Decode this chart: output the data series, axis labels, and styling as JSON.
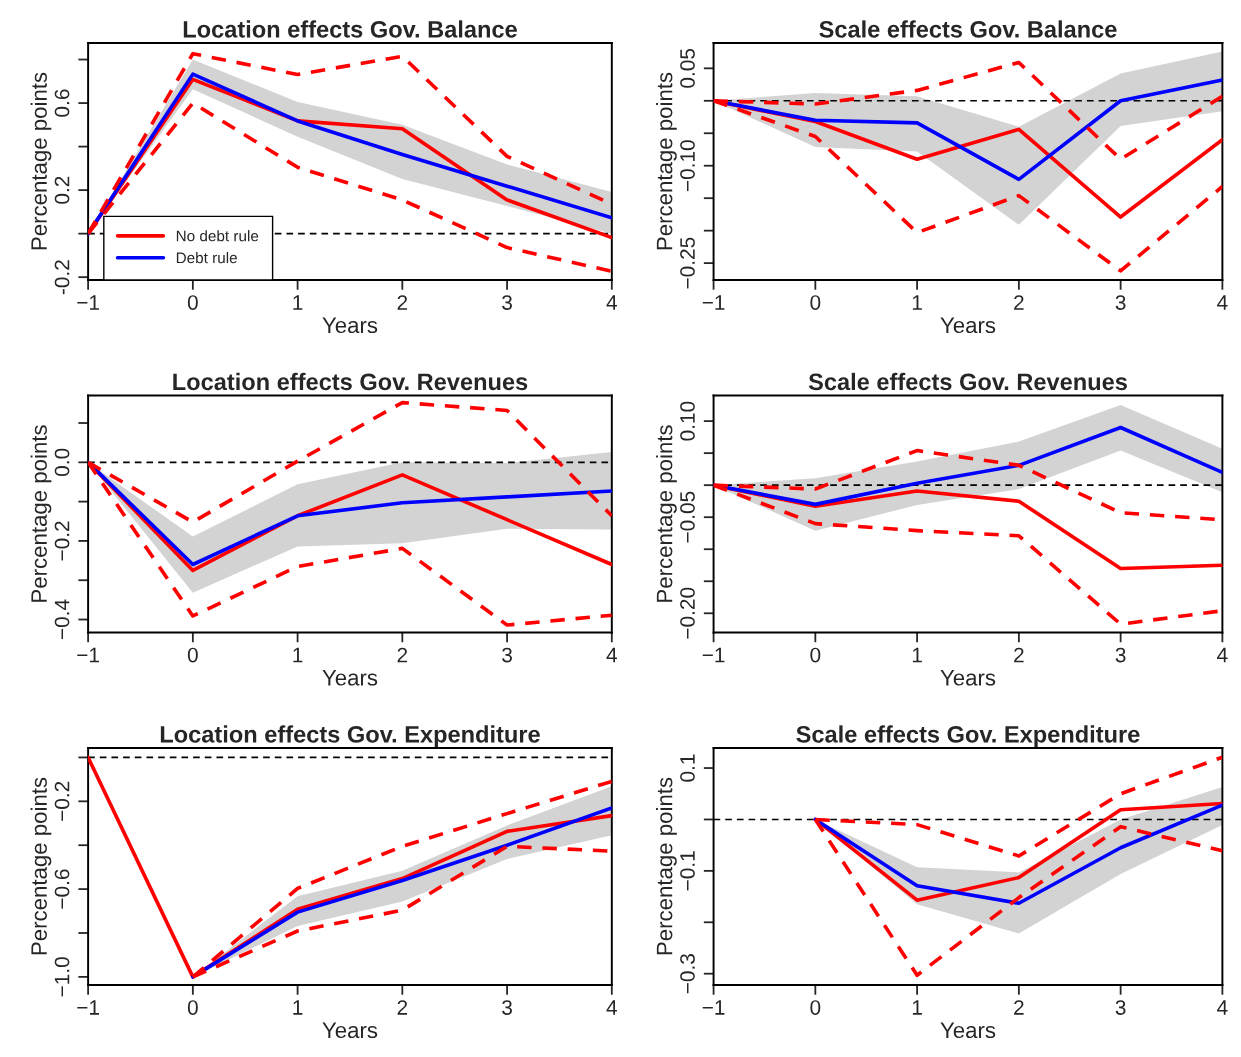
{
  "chart_data": [
    {
      "type": "line",
      "title": "Location effects Gov. Balance",
      "xlabel": "Years",
      "ylabel": "Percentage points",
      "x": [
        -1,
        0,
        1,
        2,
        3,
        4
      ],
      "xlim": [
        -1,
        4
      ],
      "xticks": [
        -1,
        0,
        1,
        2,
        3,
        4
      ],
      "ylim": [
        -0.213,
        0.876
      ],
      "yticks": [
        -0.2,
        {
          "value": 0.0,
          "label": null
        },
        0.2,
        {
          "value": 0.4,
          "label": null
        },
        0.6,
        {
          "value": 0.8,
          "label": null
        }
      ],
      "legend": "bottom left",
      "ref_lines": [
        {
          "axis": "y",
          "value": 0,
          "color": "#000000",
          "line_style": "dashed"
        }
      ],
      "series": [
        {
          "name": "No debt rule",
          "color": "#ff0000",
          "line_style": "solid",
          "values": [
            0,
            0.709,
            0.518,
            0.482,
            0.155,
            -0.018
          ]
        },
        {
          "name": "Debt rule",
          "color": "#0000ff",
          "line_style": "solid",
          "values": [
            0,
            0.733,
            0.518,
            0.364,
            0.218,
            0.073
          ],
          "lower": [
            0,
            0.664,
            0.445,
            0.251,
            0.127,
            0.0
          ],
          "upper": [
            0,
            0.8,
            0.605,
            0.5,
            0.318,
            0.191
          ]
        },
        {
          "color": "#ff0000",
          "line_style": "dashed",
          "values": [
            0,
            0.827,
            0.731,
            0.815,
            0.355,
            0.136
          ]
        },
        {
          "color": "#ff0000",
          "line_style": "dashed",
          "values": [
            0,
            0.6,
            0.305,
            0.155,
            -0.064,
            -0.173
          ]
        }
      ]
    },
    {
      "type": "line",
      "title": "Scale effects Gov. Balance",
      "xlabel": "Years",
      "ylabel": "Percentage points",
      "x": [
        -1,
        0,
        1,
        2,
        3,
        4
      ],
      "xlim": [
        -1,
        4
      ],
      "xticks": [
        -1,
        0,
        1,
        2,
        3,
        4
      ],
      "ylim": [
        -0.276,
        0.089
      ],
      "yticks": [
        {
          "value": -0.25,
          "label": "−0.25"
        },
        {
          "value": -0.2,
          "label": null
        },
        {
          "value": -0.15,
          "label": null
        },
        {
          "value": -0.1,
          "label": "−0.10"
        },
        {
          "value": -0.05,
          "label": null
        },
        {
          "value": 0.0,
          "label": null
        },
        {
          "value": 0.05,
          "label": "0.05"
        }
      ],
      "ref_lines": [
        {
          "axis": "y",
          "value": 0,
          "color": "#000000",
          "line_style": "dashed"
        }
      ],
      "series": [
        {
          "color": "#ff0000",
          "line_style": "solid",
          "values": [
            0,
            -0.032,
            -0.09,
            -0.044,
            -0.179,
            -0.06
          ]
        },
        {
          "color": "#0000ff",
          "line_style": "solid",
          "values": [
            0,
            -0.03,
            -0.034,
            -0.121,
            0.0,
            0.032
          ],
          "lower": [
            0,
            -0.071,
            -0.078,
            -0.191,
            -0.039,
            -0.016
          ],
          "upper": [
            0,
            0.012,
            0.007,
            -0.04,
            0.042,
            0.076
          ]
        },
        {
          "color": "#ff0000",
          "line_style": "dashed",
          "values": [
            0,
            -0.005,
            0.016,
            0.059,
            -0.09,
            0.007
          ]
        },
        {
          "color": "#ff0000",
          "line_style": "dashed",
          "values": [
            0,
            -0.055,
            -0.203,
            -0.146,
            -0.262,
            -0.132
          ]
        }
      ]
    },
    {
      "type": "line",
      "title": "Location effects Gov. Revenues",
      "xlabel": "Years",
      "ylabel": "Percentage points",
      "x": [
        -1,
        0,
        1,
        2,
        3,
        4
      ],
      "xlim": [
        -1,
        4
      ],
      "xticks": [
        -1,
        0,
        1,
        2,
        3,
        4
      ],
      "ylim": [
        -0.433,
        0.17
      ],
      "yticks": [
        {
          "value": -0.4,
          "label": "−0.4"
        },
        {
          "value": -0.3,
          "label": null
        },
        {
          "value": -0.2,
          "label": "−0.2"
        },
        {
          "value": -0.1,
          "label": null
        },
        {
          "value": 0.0,
          "label": "0.0"
        },
        {
          "value": 0.1,
          "label": null
        }
      ],
      "ref_lines": [
        {
          "axis": "y",
          "value": 0,
          "color": "#000000",
          "line_style": "dashed"
        }
      ],
      "series": [
        {
          "color": "#ff0000",
          "line_style": "solid",
          "values": [
            0,
            -0.275,
            -0.136,
            -0.032,
            -0.146,
            -0.26
          ]
        },
        {
          "color": "#0000ff",
          "line_style": "solid",
          "values": [
            0,
            -0.26,
            -0.136,
            -0.103,
            -0.088,
            -0.073
          ],
          "lower": [
            0,
            -0.332,
            -0.214,
            -0.206,
            -0.169,
            -0.171
          ],
          "upper": [
            0,
            -0.189,
            -0.056,
            0.0,
            -0.002,
            0.026
          ]
        },
        {
          "color": "#ff0000",
          "line_style": "dashed",
          "values": [
            0,
            -0.152,
            0.003,
            0.152,
            0.132,
            -0.136
          ]
        },
        {
          "color": "#ff0000",
          "line_style": "dashed",
          "values": [
            0,
            -0.391,
            -0.265,
            -0.219,
            -0.414,
            -0.389
          ]
        }
      ]
    },
    {
      "type": "line",
      "title": "Scale effects Gov. Revenues",
      "xlabel": "Years",
      "ylabel": "Percentage points",
      "x": [
        -1,
        0,
        1,
        2,
        3,
        4
      ],
      "xlim": [
        -1,
        4
      ],
      "xticks": [
        -1,
        0,
        1,
        2,
        3,
        4
      ],
      "ylim": [
        -0.23,
        0.14
      ],
      "yticks": [
        {
          "value": -0.2,
          "label": "−0.20"
        },
        {
          "value": -0.15,
          "label": null
        },
        {
          "value": -0.1,
          "label": null
        },
        {
          "value": -0.05,
          "label": "−0.05"
        },
        {
          "value": 0.0,
          "label": null
        },
        {
          "value": 0.05,
          "label": null
        },
        {
          "value": 0.1,
          "label": "0.10"
        }
      ],
      "ref_lines": [
        {
          "axis": "y",
          "value": 0,
          "color": "#000000",
          "line_style": "dashed"
        }
      ],
      "series": [
        {
          "color": "#ff0000",
          "line_style": "solid",
          "values": [
            0,
            -0.033,
            -0.009,
            -0.025,
            -0.13,
            -0.125
          ]
        },
        {
          "color": "#0000ff",
          "line_style": "solid",
          "values": [
            0,
            -0.03,
            0.003,
            0.031,
            0.09,
            0.02
          ],
          "lower": [
            0,
            -0.071,
            -0.031,
            -0.006,
            0.054,
            -0.011
          ],
          "upper": [
            0,
            0.011,
            0.037,
            0.068,
            0.125,
            0.057
          ]
        },
        {
          "color": "#ff0000",
          "line_style": "dashed",
          "values": [
            0,
            -0.006,
            0.054,
            0.031,
            -0.043,
            -0.054
          ]
        },
        {
          "color": "#ff0000",
          "line_style": "dashed",
          "values": [
            0,
            -0.06,
            -0.071,
            -0.079,
            -0.217,
            -0.196
          ]
        }
      ]
    },
    {
      "type": "line",
      "title": "Location effects Gov. Expenditure",
      "xlabel": "Years",
      "ylabel": "Percentage points",
      "x": [
        -1,
        0,
        1,
        2,
        3,
        4
      ],
      "xlim": [
        -1,
        4
      ],
      "xticks": [
        -1,
        0,
        1,
        2,
        3,
        4
      ],
      "ylim": [
        -1.037,
        0.043
      ],
      "yticks": [
        {
          "value": -1.0,
          "label": "−1.0"
        },
        {
          "value": -0.8,
          "label": null
        },
        {
          "value": -0.6,
          "label": "−0.6"
        },
        {
          "value": -0.4,
          "label": null
        },
        {
          "value": -0.2,
          "label": "−0.2"
        },
        {
          "value": 0.0,
          "label": null
        }
      ],
      "ref_lines": [
        {
          "axis": "y",
          "value": 0,
          "color": "#000000",
          "line_style": "dashed"
        }
      ],
      "series": [
        {
          "color": "#ff0000",
          "line_style": "solid",
          "values": [
            0,
            -1.0,
            -0.692,
            -0.552,
            -0.337,
            -0.265
          ]
        },
        {
          "color": "#0000ff",
          "line_style": "solid",
          "values": [
            null,
            -1.0,
            -0.705,
            -0.561,
            -0.4,
            -0.23
          ],
          "lower": [
            null,
            -1.0,
            -0.768,
            -0.656,
            -0.463,
            -0.355
          ],
          "upper": [
            null,
            -1.0,
            -0.633,
            -0.516,
            -0.31,
            -0.131
          ]
        },
        {
          "color": "#ff0000",
          "line_style": "dashed",
          "values": [
            null,
            -1.0,
            -0.597,
            -0.405,
            -0.256,
            -0.109
          ]
        },
        {
          "color": "#ff0000",
          "line_style": "dashed",
          "values": [
            null,
            -1.0,
            -0.791,
            -0.696,
            -0.405,
            -0.427
          ]
        }
      ]
    },
    {
      "type": "line",
      "title": "Scale effects Gov. Expenditure",
      "xlabel": "Years",
      "ylabel": "Percentage points",
      "x": [
        0,
        1,
        2,
        3,
        4
      ],
      "xlim": [
        -1,
        4
      ],
      "xticks": [
        -1,
        0,
        1,
        2,
        3,
        4
      ],
      "ylim": [
        -0.322,
        0.139
      ],
      "yticks": [
        {
          "value": -0.3,
          "label": "−0.3"
        },
        {
          "value": -0.2,
          "label": null
        },
        {
          "value": -0.1,
          "label": "−0.1"
        },
        {
          "value": 0.0,
          "label": null
        },
        {
          "value": 0.1,
          "label": "0.1"
        }
      ],
      "ref_lines": [
        {
          "axis": "y",
          "value": 0,
          "color": "#000000",
          "line_style": "dashed"
        }
      ],
      "series": [
        {
          "color": "#ff0000",
          "line_style": "solid",
          "values": [
            0,
            -0.157,
            -0.113,
            0.019,
            0.031
          ]
        },
        {
          "color": "#0000ff",
          "line_style": "solid",
          "values": [
            0,
            -0.129,
            -0.163,
            -0.055,
            0.028
          ],
          "lower": [
            0,
            -0.165,
            -0.222,
            -0.106,
            -0.011
          ],
          "upper": [
            0,
            -0.093,
            -0.103,
            0.0,
            0.063
          ]
        },
        {
          "color": "#ff0000",
          "line_style": "dashed",
          "values": [
            0,
            -0.01,
            -0.071,
            0.05,
            0.121
          ]
        },
        {
          "color": "#ff0000",
          "line_style": "dashed",
          "values": [
            0,
            -0.303,
            -0.152,
            -0.014,
            -0.061
          ]
        }
      ]
    }
  ]
}
